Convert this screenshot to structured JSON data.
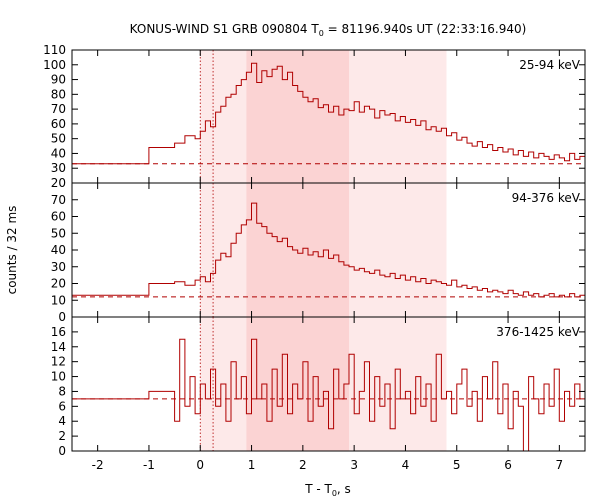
{
  "chart_data": {
    "type": "line",
    "title": "KONUS-WIND S1 GRB 090804 T0 = 81196.940s UT (22:33:16.940)",
    "title_parts": {
      "pre": "KONUS-WIND S1 GRB 090804 T",
      "sub": "0",
      "post": " = 81196.940s UT (22:33:16.940)"
    },
    "xlabel_parts": {
      "pre": "T - T",
      "sub": "0",
      "post": ", s"
    },
    "ylabel": "counts / 32 ms",
    "xlim": [
      -2.5,
      7.5
    ],
    "xticks": [
      "-2",
      "-1",
      "0",
      "1",
      "2",
      "3",
      "4",
      "5",
      "6",
      "7"
    ],
    "line_color": "#b00000",
    "shaded_intervals": [
      {
        "start": 0.0,
        "end": 4.8,
        "color": "#fde9e9"
      },
      {
        "start": 0.9,
        "end": 2.9,
        "color": "#fbd3d3"
      }
    ],
    "reference_lines_x": [
      0.0,
      0.25
    ],
    "panels": [
      {
        "label": "25-94 keV",
        "ylim": [
          20,
          110
        ],
        "yticks": [
          20,
          30,
          40,
          50,
          60,
          70,
          80,
          90,
          100,
          110
        ],
        "background": 33,
        "series": [
          {
            "x": -2.5,
            "y": 33
          },
          {
            "x": -1.0,
            "y": 44
          },
          {
            "x": -0.5,
            "y": 47
          },
          {
            "x": -0.3,
            "y": 52
          },
          {
            "x": -0.1,
            "y": 50
          },
          {
            "x": 0.0,
            "y": 55
          },
          {
            "x": 0.1,
            "y": 62
          },
          {
            "x": 0.2,
            "y": 58
          },
          {
            "x": 0.3,
            "y": 68
          },
          {
            "x": 0.4,
            "y": 72
          },
          {
            "x": 0.5,
            "y": 78
          },
          {
            "x": 0.6,
            "y": 80
          },
          {
            "x": 0.7,
            "y": 86
          },
          {
            "x": 0.8,
            "y": 90
          },
          {
            "x": 0.9,
            "y": 95
          },
          {
            "x": 1.0,
            "y": 101
          },
          {
            "x": 1.1,
            "y": 88
          },
          {
            "x": 1.2,
            "y": 96
          },
          {
            "x": 1.3,
            "y": 92
          },
          {
            "x": 1.4,
            "y": 97
          },
          {
            "x": 1.5,
            "y": 99
          },
          {
            "x": 1.6,
            "y": 90
          },
          {
            "x": 1.7,
            "y": 95
          },
          {
            "x": 1.8,
            "y": 86
          },
          {
            "x": 1.9,
            "y": 82
          },
          {
            "x": 2.0,
            "y": 78
          },
          {
            "x": 2.1,
            "y": 75
          },
          {
            "x": 2.2,
            "y": 77
          },
          {
            "x": 2.3,
            "y": 71
          },
          {
            "x": 2.4,
            "y": 73
          },
          {
            "x": 2.5,
            "y": 68
          },
          {
            "x": 2.6,
            "y": 72
          },
          {
            "x": 2.7,
            "y": 66
          },
          {
            "x": 2.8,
            "y": 70
          },
          {
            "x": 2.9,
            "y": 69
          },
          {
            "x": 3.0,
            "y": 75
          },
          {
            "x": 3.1,
            "y": 68
          },
          {
            "x": 3.2,
            "y": 72
          },
          {
            "x": 3.3,
            "y": 70
          },
          {
            "x": 3.4,
            "y": 64
          },
          {
            "x": 3.5,
            "y": 69
          },
          {
            "x": 3.6,
            "y": 66
          },
          {
            "x": 3.7,
            "y": 67
          },
          {
            "x": 3.8,
            "y": 62
          },
          {
            "x": 3.9,
            "y": 65
          },
          {
            "x": 4.0,
            "y": 61
          },
          {
            "x": 4.1,
            "y": 63
          },
          {
            "x": 4.2,
            "y": 59
          },
          {
            "x": 4.3,
            "y": 62
          },
          {
            "x": 4.4,
            "y": 56
          },
          {
            "x": 4.5,
            "y": 58
          },
          {
            "x": 4.6,
            "y": 55
          },
          {
            "x": 4.7,
            "y": 57
          },
          {
            "x": 4.8,
            "y": 52
          },
          {
            "x": 4.9,
            "y": 54
          },
          {
            "x": 5.0,
            "y": 49
          },
          {
            "x": 5.1,
            "y": 51
          },
          {
            "x": 5.2,
            "y": 47
          },
          {
            "x": 5.3,
            "y": 45
          },
          {
            "x": 5.4,
            "y": 48
          },
          {
            "x": 5.5,
            "y": 44
          },
          {
            "x": 5.6,
            "y": 46
          },
          {
            "x": 5.7,
            "y": 42
          },
          {
            "x": 5.8,
            "y": 44
          },
          {
            "x": 5.9,
            "y": 41
          },
          {
            "x": 6.0,
            "y": 43
          },
          {
            "x": 6.1,
            "y": 39
          },
          {
            "x": 6.2,
            "y": 42
          },
          {
            "x": 6.3,
            "y": 38
          },
          {
            "x": 6.4,
            "y": 41
          },
          {
            "x": 6.5,
            "y": 37
          },
          {
            "x": 6.6,
            "y": 40
          },
          {
            "x": 6.7,
            "y": 38
          },
          {
            "x": 6.8,
            "y": 36
          },
          {
            "x": 6.9,
            "y": 39
          },
          {
            "x": 7.0,
            "y": 37
          },
          {
            "x": 7.1,
            "y": 35
          },
          {
            "x": 7.2,
            "y": 40
          },
          {
            "x": 7.3,
            "y": 36
          },
          {
            "x": 7.4,
            "y": 38
          }
        ]
      },
      {
        "label": "94-376 keV",
        "ylim": [
          0,
          80
        ],
        "yticks": [
          0,
          10,
          20,
          30,
          40,
          50,
          60,
          70,
          80
        ],
        "background": 12,
        "series": [
          {
            "x": -2.5,
            "y": 13
          },
          {
            "x": -1.0,
            "y": 20
          },
          {
            "x": -0.5,
            "y": 21
          },
          {
            "x": -0.3,
            "y": 19
          },
          {
            "x": -0.1,
            "y": 22
          },
          {
            "x": 0.0,
            "y": 24
          },
          {
            "x": 0.1,
            "y": 21
          },
          {
            "x": 0.2,
            "y": 26
          },
          {
            "x": 0.3,
            "y": 34
          },
          {
            "x": 0.4,
            "y": 38
          },
          {
            "x": 0.5,
            "y": 36
          },
          {
            "x": 0.6,
            "y": 44
          },
          {
            "x": 0.7,
            "y": 50
          },
          {
            "x": 0.8,
            "y": 55
          },
          {
            "x": 0.9,
            "y": 58
          },
          {
            "x": 1.0,
            "y": 68
          },
          {
            "x": 1.1,
            "y": 56
          },
          {
            "x": 1.2,
            "y": 54
          },
          {
            "x": 1.3,
            "y": 50
          },
          {
            "x": 1.4,
            "y": 48
          },
          {
            "x": 1.5,
            "y": 45
          },
          {
            "x": 1.6,
            "y": 47
          },
          {
            "x": 1.7,
            "y": 42
          },
          {
            "x": 1.8,
            "y": 40
          },
          {
            "x": 1.9,
            "y": 38
          },
          {
            "x": 2.0,
            "y": 41
          },
          {
            "x": 2.1,
            "y": 37
          },
          {
            "x": 2.2,
            "y": 39
          },
          {
            "x": 2.3,
            "y": 36
          },
          {
            "x": 2.4,
            "y": 40
          },
          {
            "x": 2.5,
            "y": 35
          },
          {
            "x": 2.6,
            "y": 37
          },
          {
            "x": 2.7,
            "y": 33
          },
          {
            "x": 2.8,
            "y": 31
          },
          {
            "x": 2.9,
            "y": 30
          },
          {
            "x": 3.0,
            "y": 28
          },
          {
            "x": 3.1,
            "y": 29
          },
          {
            "x": 3.2,
            "y": 27
          },
          {
            "x": 3.3,
            "y": 26
          },
          {
            "x": 3.4,
            "y": 28
          },
          {
            "x": 3.5,
            "y": 25
          },
          {
            "x": 3.6,
            "y": 24
          },
          {
            "x": 3.7,
            "y": 26
          },
          {
            "x": 3.8,
            "y": 23
          },
          {
            "x": 3.9,
            "y": 25
          },
          {
            "x": 4.0,
            "y": 22
          },
          {
            "x": 4.1,
            "y": 24
          },
          {
            "x": 4.2,
            "y": 21
          },
          {
            "x": 4.3,
            "y": 23
          },
          {
            "x": 4.4,
            "y": 20
          },
          {
            "x": 4.5,
            "y": 22
          },
          {
            "x": 4.6,
            "y": 21
          },
          {
            "x": 4.7,
            "y": 20
          },
          {
            "x": 4.8,
            "y": 19
          },
          {
            "x": 4.9,
            "y": 22
          },
          {
            "x": 5.0,
            "y": 18
          },
          {
            "x": 5.1,
            "y": 19
          },
          {
            "x": 5.2,
            "y": 17
          },
          {
            "x": 5.3,
            "y": 18
          },
          {
            "x": 5.4,
            "y": 16
          },
          {
            "x": 5.5,
            "y": 17
          },
          {
            "x": 5.6,
            "y": 15
          },
          {
            "x": 5.7,
            "y": 16
          },
          {
            "x": 5.8,
            "y": 15
          },
          {
            "x": 5.9,
            "y": 14
          },
          {
            "x": 6.0,
            "y": 16
          },
          {
            "x": 6.1,
            "y": 14
          },
          {
            "x": 6.2,
            "y": 13
          },
          {
            "x": 6.3,
            "y": 15
          },
          {
            "x": 6.4,
            "y": 13
          },
          {
            "x": 6.5,
            "y": 14
          },
          {
            "x": 6.6,
            "y": 12
          },
          {
            "x": 6.7,
            "y": 13
          },
          {
            "x": 6.8,
            "y": 14
          },
          {
            "x": 6.9,
            "y": 12
          },
          {
            "x": 7.0,
            "y": 13
          },
          {
            "x": 7.1,
            "y": 12
          },
          {
            "x": 7.2,
            "y": 14
          },
          {
            "x": 7.3,
            "y": 12
          },
          {
            "x": 7.4,
            "y": 13
          }
        ]
      },
      {
        "label": "376-1425 keV",
        "ylim": [
          0,
          18
        ],
        "yticks": [
          0,
          2,
          4,
          6,
          8,
          10,
          12,
          14,
          16
        ],
        "background": 7,
        "series": [
          {
            "x": -2.5,
            "y": 7
          },
          {
            "x": -1.0,
            "y": 8
          },
          {
            "x": -0.5,
            "y": 4
          },
          {
            "x": -0.4,
            "y": 15
          },
          {
            "x": -0.3,
            "y": 6
          },
          {
            "x": -0.2,
            "y": 10
          },
          {
            "x": -0.1,
            "y": 5
          },
          {
            "x": 0.0,
            "y": 9
          },
          {
            "x": 0.1,
            "y": 7
          },
          {
            "x": 0.2,
            "y": 11
          },
          {
            "x": 0.3,
            "y": 6
          },
          {
            "x": 0.4,
            "y": 9
          },
          {
            "x": 0.5,
            "y": 4
          },
          {
            "x": 0.6,
            "y": 12
          },
          {
            "x": 0.7,
            "y": 7
          },
          {
            "x": 0.8,
            "y": 10
          },
          {
            "x": 0.9,
            "y": 5
          },
          {
            "x": 1.0,
            "y": 15
          },
          {
            "x": 1.1,
            "y": 7
          },
          {
            "x": 1.2,
            "y": 9
          },
          {
            "x": 1.3,
            "y": 4
          },
          {
            "x": 1.4,
            "y": 11
          },
          {
            "x": 1.5,
            "y": 6
          },
          {
            "x": 1.6,
            "y": 13
          },
          {
            "x": 1.7,
            "y": 5
          },
          {
            "x": 1.8,
            "y": 9
          },
          {
            "x": 1.9,
            "y": 7
          },
          {
            "x": 2.0,
            "y": 12
          },
          {
            "x": 2.1,
            "y": 4
          },
          {
            "x": 2.2,
            "y": 10
          },
          {
            "x": 2.3,
            "y": 6
          },
          {
            "x": 2.4,
            "y": 8
          },
          {
            "x": 2.5,
            "y": 3
          },
          {
            "x": 2.6,
            "y": 11
          },
          {
            "x": 2.7,
            "y": 7
          },
          {
            "x": 2.8,
            "y": 9
          },
          {
            "x": 2.9,
            "y": 13
          },
          {
            "x": 3.0,
            "y": 5
          },
          {
            "x": 3.1,
            "y": 8
          },
          {
            "x": 3.2,
            "y": 12
          },
          {
            "x": 3.3,
            "y": 4
          },
          {
            "x": 3.4,
            "y": 10
          },
          {
            "x": 3.5,
            "y": 6
          },
          {
            "x": 3.6,
            "y": 9
          },
          {
            "x": 3.7,
            "y": 3
          },
          {
            "x": 3.8,
            "y": 11
          },
          {
            "x": 3.9,
            "y": 7
          },
          {
            "x": 4.0,
            "y": 8
          },
          {
            "x": 4.1,
            "y": 5
          },
          {
            "x": 4.2,
            "y": 10
          },
          {
            "x": 4.3,
            "y": 6
          },
          {
            "x": 4.4,
            "y": 9
          },
          {
            "x": 4.5,
            "y": 4
          },
          {
            "x": 4.6,
            "y": 13
          },
          {
            "x": 4.7,
            "y": 7
          },
          {
            "x": 4.8,
            "y": 8
          },
          {
            "x": 4.9,
            "y": 5
          },
          {
            "x": 5.0,
            "y": 9
          },
          {
            "x": 5.1,
            "y": 11
          },
          {
            "x": 5.2,
            "y": 6
          },
          {
            "x": 5.3,
            "y": 8
          },
          {
            "x": 5.4,
            "y": 4
          },
          {
            "x": 5.5,
            "y": 10
          },
          {
            "x": 5.6,
            "y": 7
          },
          {
            "x": 5.7,
            "y": 12
          },
          {
            "x": 5.8,
            "y": 5
          },
          {
            "x": 5.9,
            "y": 9
          },
          {
            "x": 6.0,
            "y": 3
          },
          {
            "x": 6.1,
            "y": 8
          },
          {
            "x": 6.2,
            "y": 6
          },
          {
            "x": 6.3,
            "y": 0
          },
          {
            "x": 6.4,
            "y": 10
          },
          {
            "x": 6.5,
            "y": 7
          },
          {
            "x": 6.6,
            "y": 5
          },
          {
            "x": 6.7,
            "y": 9
          },
          {
            "x": 6.8,
            "y": 6
          },
          {
            "x": 6.9,
            "y": 11
          },
          {
            "x": 7.0,
            "y": 4
          },
          {
            "x": 7.1,
            "y": 8
          },
          {
            "x": 7.2,
            "y": 6
          },
          {
            "x": 7.3,
            "y": 9
          },
          {
            "x": 7.4,
            "y": 7
          }
        ]
      }
    ]
  }
}
